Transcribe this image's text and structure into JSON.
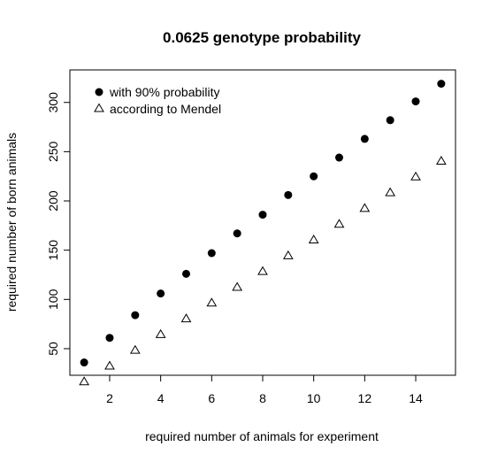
{
  "chart_data": {
    "type": "scatter",
    "title": "0.0625 genotype probability",
    "xlabel": "required number of animals for experiment",
    "ylabel": "required number of born animals",
    "xlim": [
      0.44,
      15.56
    ],
    "ylim": [
      23,
      333
    ],
    "xticks": [
      2,
      4,
      6,
      8,
      10,
      12,
      14
    ],
    "yticks": [
      50,
      100,
      150,
      200,
      250,
      300
    ],
    "grid": false,
    "legend_position": "top-left",
    "x": [
      1,
      2,
      3,
      4,
      5,
      6,
      7,
      8,
      9,
      10,
      11,
      12,
      13,
      14,
      15
    ],
    "series": [
      {
        "name": "with 90% probability",
        "marker": "filled-circle",
        "values": [
          36,
          61,
          84,
          106,
          126,
          147,
          167,
          186,
          206,
          225,
          244,
          263,
          282,
          301,
          319
        ]
      },
      {
        "name": "according to Mendel",
        "marker": "open-triangle",
        "values": [
          16,
          32,
          48,
          64,
          80,
          96,
          112,
          128,
          144,
          160,
          176,
          192,
          208,
          224,
          240
        ]
      }
    ],
    "colors": {
      "marker": "#000000",
      "axis": "#000000"
    }
  }
}
